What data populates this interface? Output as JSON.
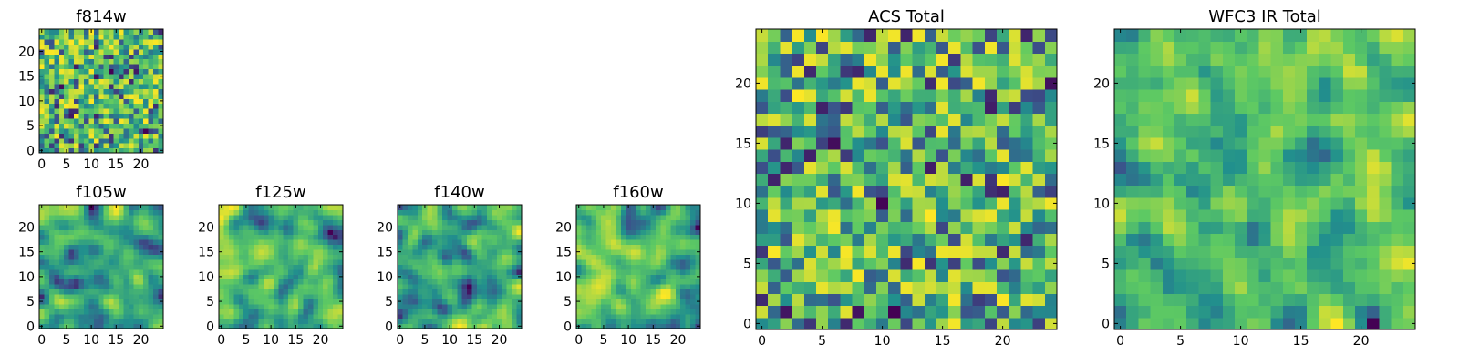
{
  "figure": {
    "colormap": [
      "#440154",
      "#3b528b",
      "#21908d",
      "#5dc963",
      "#fde725"
    ],
    "frame_color": "#000000",
    "background": "#ffffff"
  },
  "chart_data": [
    {
      "id": "f814w",
      "type": "heatmap",
      "title": "f814w",
      "grid_size": 25,
      "xlim": [
        0,
        24
      ],
      "ylim": [
        0,
        24
      ],
      "xticks": [
        "0",
        "5",
        "10",
        "15",
        "20"
      ],
      "yticks": [
        "0",
        "5",
        "10",
        "15",
        "20"
      ],
      "values": "seeded-noise",
      "seed": 11,
      "smooth": 0,
      "vrange": [
        0,
        1
      ]
    },
    {
      "id": "f105w",
      "type": "heatmap",
      "title": "f105w",
      "grid_size": 25,
      "xlim": [
        0,
        24
      ],
      "ylim": [
        0,
        24
      ],
      "xticks": [
        "0",
        "5",
        "10",
        "15",
        "20"
      ],
      "yticks": [
        "0",
        "5",
        "10",
        "15",
        "20"
      ],
      "values": "seeded-noise",
      "seed": 23,
      "smooth": 2,
      "vrange": [
        0,
        1
      ]
    },
    {
      "id": "f125w",
      "type": "heatmap",
      "title": "f125w",
      "grid_size": 25,
      "xlim": [
        0,
        24
      ],
      "ylim": [
        0,
        24
      ],
      "xticks": [
        "0",
        "5",
        "10",
        "15",
        "20"
      ],
      "yticks": [
        "0",
        "5",
        "10",
        "15",
        "20"
      ],
      "values": "seeded-noise",
      "seed": 37,
      "smooth": 2,
      "vrange": [
        0,
        1
      ]
    },
    {
      "id": "f140w",
      "type": "heatmap",
      "title": "f140w",
      "grid_size": 25,
      "xlim": [
        0,
        24
      ],
      "ylim": [
        0,
        24
      ],
      "xticks": [
        "0",
        "5",
        "10",
        "15",
        "20"
      ],
      "yticks": [
        "0",
        "5",
        "10",
        "15",
        "20"
      ],
      "values": "seeded-noise",
      "seed": 41,
      "smooth": 2,
      "vrange": [
        0,
        1
      ]
    },
    {
      "id": "f160w",
      "type": "heatmap",
      "title": "f160w",
      "grid_size": 25,
      "xlim": [
        0,
        24
      ],
      "ylim": [
        0,
        24
      ],
      "xticks": [
        "0",
        "5",
        "10",
        "15",
        "20"
      ],
      "yticks": [
        "0",
        "5",
        "10",
        "15",
        "20"
      ],
      "values": "seeded-noise",
      "seed": 53,
      "smooth": 2,
      "vrange": [
        0,
        1
      ]
    },
    {
      "id": "acs-total",
      "type": "heatmap",
      "title": "ACS Total",
      "grid_size": 25,
      "xlim": [
        0,
        24
      ],
      "ylim": [
        0,
        24
      ],
      "xticks": [
        "0",
        "5",
        "10",
        "15",
        "20"
      ],
      "yticks": [
        "0",
        "5",
        "10",
        "15",
        "20"
      ],
      "values": "seeded-noise",
      "seed": 67,
      "smooth": 0,
      "vrange": [
        0,
        1
      ]
    },
    {
      "id": "wfc3-ir-total",
      "type": "heatmap",
      "title": "WFC3 IR Total",
      "grid_size": 25,
      "xlim": [
        0,
        24
      ],
      "ylim": [
        0,
        24
      ],
      "xticks": [
        "0",
        "5",
        "10",
        "15",
        "20"
      ],
      "yticks": [
        "0",
        "5",
        "10",
        "15",
        "20"
      ],
      "values": "seeded-noise",
      "seed": 79,
      "smooth": 1,
      "vrange": [
        0,
        1
      ]
    }
  ]
}
